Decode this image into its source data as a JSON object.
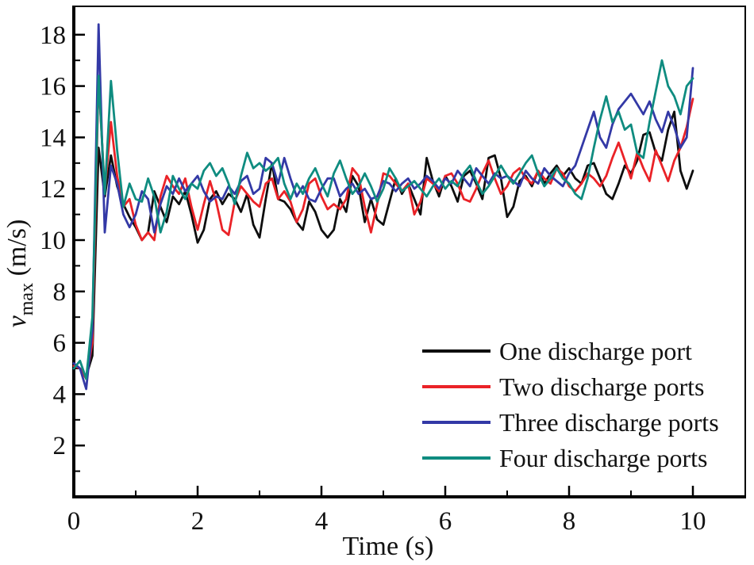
{
  "chart_data": {
    "type": "line",
    "title": "",
    "xlabel": "Time (s)",
    "ylabel": "v_max (m/s)",
    "ylabel_parts": {
      "symbol": "v",
      "subscript": "max",
      "unit": " (m/s)"
    },
    "xlim": [
      0,
      10.87
    ],
    "ylim": [
      0,
      19.15
    ],
    "x_major_ticks": [
      0,
      2,
      4,
      6,
      8,
      10
    ],
    "x_minor_ticks": [
      1,
      3,
      5,
      7,
      9
    ],
    "y_major_ticks": [
      2,
      4,
      6,
      8,
      10,
      12,
      14,
      16,
      18
    ],
    "y_minor_ticks": [
      1,
      3,
      5,
      7,
      9,
      11,
      13,
      15,
      17
    ],
    "grid": false,
    "legend_position": "lower right",
    "axis_color": "#000000",
    "t_start": 0,
    "t_step": 0.1,
    "series": [
      {
        "name": "one_port",
        "label": "One discharge port",
        "color": "#0e0e0e",
        "values": [
          5.1,
          5.0,
          4.7,
          5.5,
          13.6,
          11.7,
          13.3,
          12.1,
          11.4,
          10.9,
          10.5,
          10.0,
          10.3,
          11.9,
          11.3,
          10.7,
          11.7,
          11.4,
          11.9,
          11.0,
          9.9,
          10.4,
          11.6,
          11.9,
          11.4,
          11.8,
          11.6,
          11.1,
          11.8,
          10.6,
          10.1,
          11.6,
          13.0,
          11.6,
          11.5,
          11.2,
          10.7,
          10.4,
          11.5,
          11.1,
          10.4,
          10.1,
          10.4,
          11.6,
          11.1,
          12.5,
          12.1,
          10.7,
          11.6,
          10.8,
          10.6,
          11.5,
          12.4,
          11.8,
          12.2,
          11.6,
          11.0,
          13.2,
          12.3,
          11.7,
          12.5,
          12.1,
          11.5,
          12.5,
          12.7,
          12.2,
          11.6,
          13.2,
          13.3,
          12.4,
          10.9,
          11.3,
          12.3,
          12.5,
          12.1,
          12.7,
          12.2,
          12.6,
          12.9,
          12.5,
          12.8,
          12.4,
          12.2,
          12.9,
          13.0,
          12.4,
          11.8,
          11.6,
          12.2,
          12.9,
          12.6,
          13.1,
          14.1,
          14.2,
          13.4,
          13.1,
          14.3,
          15.0,
          12.7,
          12.0,
          12.7
        ]
      },
      {
        "name": "two_ports",
        "label": "Two discharge ports",
        "color": "#ea2227",
        "values": [
          5.1,
          5.0,
          4.6,
          6.0,
          16.3,
          11.9,
          14.6,
          12.5,
          11.3,
          11.6,
          10.6,
          10.0,
          10.3,
          10.0,
          11.7,
          12.5,
          12.1,
          11.8,
          12.4,
          11.3,
          10.4,
          11.4,
          12.3,
          11.5,
          10.4,
          10.2,
          11.5,
          12.1,
          11.8,
          11.5,
          11.3,
          12.2,
          12.4,
          11.6,
          11.9,
          11.5,
          10.7,
          11.2,
          12.2,
          12.4,
          11.7,
          11.2,
          11.4,
          11.2,
          11.6,
          12.8,
          12.5,
          11.3,
          10.3,
          11.4,
          12.6,
          12.5,
          12.2,
          11.9,
          12.2,
          11.0,
          11.5,
          12.4,
          12.2,
          11.9,
          12.5,
          12.6,
          12.2,
          11.6,
          11.5,
          12.0,
          12.6,
          13.1,
          12.4,
          11.8,
          12.1,
          12.6,
          12.8,
          12.4,
          12.2,
          12.7,
          12.4,
          12.2,
          12.8,
          12.6,
          12.1,
          11.9,
          12.2,
          12.6,
          12.4,
          12.1,
          12.5,
          13.2,
          13.8,
          13.1,
          12.4,
          13.4,
          12.8,
          12.3,
          13.5,
          12.9,
          12.3,
          13.1,
          13.6,
          14.4,
          15.5
        ]
      },
      {
        "name": "three_ports",
        "label": "Three discharge ports",
        "color": "#3339a6",
        "values": [
          5.2,
          5.0,
          4.2,
          6.5,
          18.4,
          10.3,
          12.9,
          12.2,
          11.0,
          10.5,
          11.0,
          11.9,
          11.6,
          10.3,
          11.4,
          12.1,
          11.8,
          12.4,
          11.9,
          12.2,
          12.5,
          11.9,
          11.5,
          11.7,
          11.6,
          12.1,
          11.8,
          12.3,
          12.5,
          11.8,
          12.0,
          13.2,
          13.0,
          12.2,
          13.2,
          12.4,
          11.7,
          12.1,
          11.6,
          11.5,
          12.0,
          12.4,
          12.4,
          11.7,
          12.0,
          12.2,
          11.8,
          12.0,
          11.6,
          11.7,
          12.3,
          12.2,
          11.9,
          12.2,
          12.4,
          12.0,
          12.2,
          12.5,
          12.3,
          12.0,
          12.4,
          12.2,
          12.7,
          12.4,
          12.1,
          12.8,
          12.5,
          12.2,
          12.6,
          12.4,
          12.5,
          12.3,
          12.1,
          12.7,
          12.4,
          12.2,
          12.8,
          12.5,
          12.3,
          12.1,
          12.6,
          12.9,
          13.6,
          14.3,
          15.0,
          14.0,
          13.6,
          14.5,
          15.1,
          15.4,
          15.7,
          15.3,
          14.9,
          15.4,
          14.7,
          14.2,
          15.0,
          14.4,
          13.6,
          14.0,
          16.7
        ]
      },
      {
        "name": "four_ports",
        "label": "Four discharge ports",
        "color": "#0f8c80",
        "values": [
          5.0,
          5.3,
          4.6,
          7.0,
          16.4,
          11.8,
          16.2,
          13.5,
          11.3,
          12.2,
          11.6,
          11.5,
          12.4,
          11.7,
          10.3,
          11.1,
          12.5,
          12.0,
          11.6,
          12.2,
          12.0,
          12.7,
          13.0,
          12.5,
          12.8,
          12.2,
          11.4,
          12.5,
          13.4,
          12.8,
          13.0,
          12.7,
          12.9,
          13.2,
          12.2,
          11.6,
          12.2,
          11.8,
          12.4,
          12.8,
          12.2,
          11.7,
          12.6,
          13.1,
          12.4,
          11.8,
          12.1,
          12.6,
          12.1,
          11.5,
          12.0,
          12.8,
          12.4,
          11.9,
          12.1,
          12.3,
          12.0,
          11.7,
          12.1,
          12.4,
          12.0,
          12.3,
          12.1,
          12.6,
          12.9,
          12.3,
          11.8,
          12.1,
          12.5,
          12.9,
          12.5,
          12.2,
          12.6,
          13.0,
          13.3,
          12.6,
          12.1,
          12.4,
          12.8,
          12.4,
          12.2,
          11.8,
          11.6,
          12.4,
          13.6,
          14.7,
          15.6,
          14.6,
          15.0,
          14.3,
          14.5,
          13.4,
          13.2,
          14.6,
          15.8,
          17.0,
          16.0,
          15.6,
          14.9,
          16.0,
          16.3
        ]
      }
    ]
  }
}
